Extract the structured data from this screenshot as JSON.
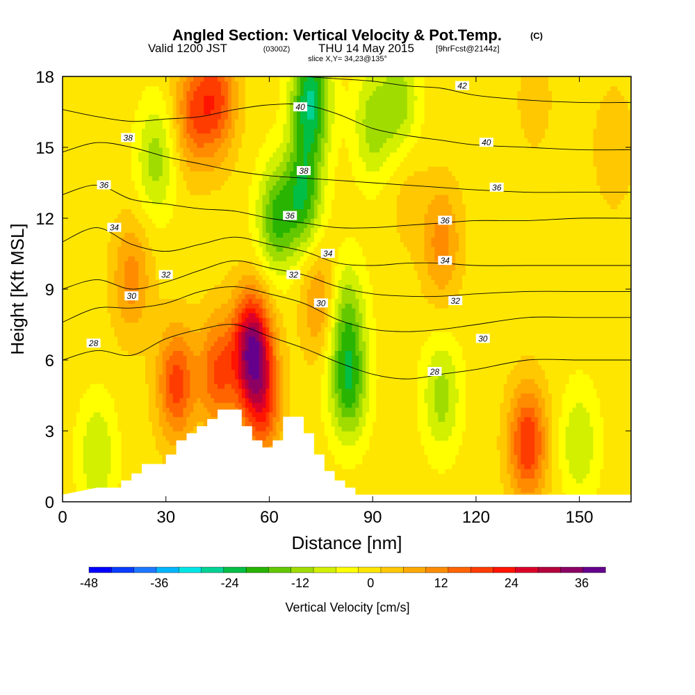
{
  "chart_data": {
    "type": "heatmap",
    "title": "Angled Section: Vertical Velocity & Pot.Temp.",
    "title_mark": "(C)",
    "subtitle_main": "Valid 1200 JST",
    "subtitle_utc": "(0300Z)",
    "subtitle_date": "THU 14 May 2015",
    "subtitle_fcst": "[9hrFcst@2144z]",
    "slice_info": "slice X,Y= 34,23@135°",
    "xlabel": "Distance [nm]",
    "ylabel": "Height [Kft MSL]",
    "xlim": [
      0,
      165
    ],
    "ylim": [
      0,
      18
    ],
    "x_ticks": [
      "0",
      "30",
      "60",
      "90",
      "120",
      "150"
    ],
    "x_tick_values": [
      0,
      30,
      60,
      90,
      120,
      150
    ],
    "y_ticks": [
      "0",
      "3",
      "6",
      "9",
      "12",
      "15",
      "18"
    ],
    "y_tick_values": [
      0,
      3,
      6,
      9,
      12,
      15,
      18
    ],
    "colorbar": {
      "label": "Vertical Velocity [cm/s]",
      "range": [
        -48,
        40
      ],
      "step": 4,
      "tick_labels": [
        "-48",
        "-36",
        "-24",
        "-12",
        "0",
        "12",
        "24",
        "36"
      ],
      "tick_values": [
        -48,
        -36,
        -24,
        -12,
        0,
        12,
        24,
        36
      ],
      "colors": [
        "#0000ff",
        "#0a3cff",
        "#1e78ff",
        "#00b4ff",
        "#00e6e6",
        "#00d296",
        "#00be46",
        "#28b400",
        "#64c800",
        "#a0dc00",
        "#d2f000",
        "#ffff00",
        "#ffe600",
        "#ffc800",
        "#ffaa00",
        "#ff8c00",
        "#ff6400",
        "#ff3c00",
        "#ff1400",
        "#dc0028",
        "#b4003c",
        "#8c0064",
        "#64008c"
      ]
    },
    "vertical_velocity_field": {
      "background": 2,
      "features": [
        {
          "x": 20,
          "y": 9.5,
          "value": 14
        },
        {
          "x": 33,
          "y": 5.0,
          "value": 22
        },
        {
          "x": 38,
          "y": 16.5,
          "value": 18
        },
        {
          "x": 45,
          "y": 5.5,
          "value": 20
        },
        {
          "x": 45,
          "y": 17.0,
          "value": 20
        },
        {
          "x": 55,
          "y": 6.5,
          "value": 38
        },
        {
          "x": 58,
          "y": 4.0,
          "value": 20
        },
        {
          "x": 62,
          "y": 12.0,
          "value": -16
        },
        {
          "x": 70,
          "y": 13.0,
          "value": -18
        },
        {
          "x": 72,
          "y": 17.0,
          "value": -24
        },
        {
          "x": 75,
          "y": 8.5,
          "value": 14
        },
        {
          "x": 83,
          "y": 5.0,
          "value": -18
        },
        {
          "x": 82,
          "y": 8.0,
          "value": -12
        },
        {
          "x": 27,
          "y": 14.5,
          "value": -10
        },
        {
          "x": 90,
          "y": 16.0,
          "value": -10
        },
        {
          "x": 98,
          "y": 17.0,
          "value": -10
        },
        {
          "x": 100,
          "y": 13.0,
          "value": 6
        },
        {
          "x": 110,
          "y": 11.0,
          "value": 14
        },
        {
          "x": 110,
          "y": 4.5,
          "value": -10
        },
        {
          "x": 135,
          "y": 2.5,
          "value": 24
        },
        {
          "x": 150,
          "y": 2.5,
          "value": -8
        },
        {
          "x": 10,
          "y": 2.0,
          "value": -8
        },
        {
          "x": 137,
          "y": 17.0,
          "value": 6
        },
        {
          "x": 160,
          "y": 15.0,
          "value": 8
        }
      ]
    },
    "theta_contours": [
      {
        "level": 28,
        "label": "28",
        "points": [
          [
            0,
            6.0
          ],
          [
            10,
            6.4
          ],
          [
            20,
            6.2
          ],
          [
            30,
            6.9
          ],
          [
            40,
            7.3
          ],
          [
            50,
            7.5
          ],
          [
            60,
            7.0
          ],
          [
            70,
            6.5
          ],
          [
            80,
            5.9
          ],
          [
            90,
            5.4
          ],
          [
            100,
            5.2
          ],
          [
            110,
            5.4
          ],
          [
            120,
            5.6
          ],
          [
            135,
            6.0
          ],
          [
            150,
            6.0
          ],
          [
            165,
            6.0
          ]
        ]
      },
      {
        "level": 30,
        "label": "30",
        "points": [
          [
            0,
            7.6
          ],
          [
            10,
            8.2
          ],
          [
            20,
            8.2
          ],
          [
            30,
            8.4
          ],
          [
            40,
            8.9
          ],
          [
            50,
            9.1
          ],
          [
            60,
            8.8
          ],
          [
            70,
            8.4
          ],
          [
            80,
            7.7
          ],
          [
            90,
            7.3
          ],
          [
            100,
            7.2
          ],
          [
            110,
            7.3
          ],
          [
            120,
            7.5
          ],
          [
            135,
            7.8
          ],
          [
            150,
            7.8
          ],
          [
            165,
            7.8
          ]
        ]
      },
      {
        "level": 32,
        "label": "32",
        "points": [
          [
            0,
            9.0
          ],
          [
            10,
            9.4
          ],
          [
            20,
            9.0
          ],
          [
            30,
            9.3
          ],
          [
            40,
            9.8
          ],
          [
            50,
            10.2
          ],
          [
            60,
            9.9
          ],
          [
            70,
            9.6
          ],
          [
            80,
            9.1
          ],
          [
            90,
            8.8
          ],
          [
            100,
            8.7
          ],
          [
            110,
            8.7
          ],
          [
            120,
            8.8
          ],
          [
            135,
            8.9
          ],
          [
            150,
            8.9
          ],
          [
            165,
            8.9
          ]
        ]
      },
      {
        "level": 34,
        "label": "34",
        "points": [
          [
            0,
            11.0
          ],
          [
            10,
            11.6
          ],
          [
            20,
            10.9
          ],
          [
            30,
            10.6
          ],
          [
            40,
            10.9
          ],
          [
            50,
            11.2
          ],
          [
            60,
            10.9
          ],
          [
            70,
            10.6
          ],
          [
            80,
            10.1
          ],
          [
            90,
            10.0
          ],
          [
            100,
            10.1
          ],
          [
            110,
            10.1
          ],
          [
            120,
            10.0
          ],
          [
            135,
            10.0
          ],
          [
            150,
            10.0
          ],
          [
            165,
            10.0
          ]
        ]
      },
      {
        "level": 36,
        "label": "36",
        "points": [
          [
            0,
            13.0
          ],
          [
            10,
            13.4
          ],
          [
            20,
            12.8
          ],
          [
            30,
            12.6
          ],
          [
            40,
            12.4
          ],
          [
            50,
            12.3
          ],
          [
            60,
            12.0
          ],
          [
            70,
            11.8
          ],
          [
            80,
            11.6
          ],
          [
            90,
            11.6
          ],
          [
            100,
            11.7
          ],
          [
            110,
            11.8
          ],
          [
            120,
            11.9
          ],
          [
            135,
            11.9
          ],
          [
            150,
            12.0
          ],
          [
            165,
            12.0
          ]
        ]
      },
      {
        "level": 38,
        "label": "38",
        "points": [
          [
            0,
            14.8
          ],
          [
            10,
            15.2
          ],
          [
            20,
            15.0
          ],
          [
            30,
            14.6
          ],
          [
            40,
            14.3
          ],
          [
            50,
            14.0
          ],
          [
            60,
            13.8
          ],
          [
            70,
            13.7
          ],
          [
            80,
            13.6
          ],
          [
            90,
            13.5
          ],
          [
            100,
            13.4
          ],
          [
            110,
            13.3
          ],
          [
            120,
            13.2
          ],
          [
            135,
            13.1
          ],
          [
            150,
            13.1
          ],
          [
            165,
            13.1
          ]
        ]
      },
      {
        "level": 40,
        "label": "40",
        "points": [
          [
            0,
            16.6
          ],
          [
            10,
            16.3
          ],
          [
            20,
            16.1
          ],
          [
            30,
            16.2
          ],
          [
            40,
            16.3
          ],
          [
            50,
            16.6
          ],
          [
            60,
            16.8
          ],
          [
            70,
            16.8
          ],
          [
            80,
            16.4
          ],
          [
            90,
            15.8
          ],
          [
            100,
            15.5
          ],
          [
            110,
            15.3
          ],
          [
            120,
            15.1
          ],
          [
            135,
            15.0
          ],
          [
            150,
            14.9
          ],
          [
            165,
            14.9
          ]
        ]
      },
      {
        "level": 42,
        "label": "42",
        "points": [
          [
            70,
            18.0
          ],
          [
            80,
            17.9
          ],
          [
            90,
            17.8
          ],
          [
            100,
            17.6
          ],
          [
            110,
            17.5
          ],
          [
            120,
            17.2
          ],
          [
            135,
            17.0
          ],
          [
            150,
            16.9
          ],
          [
            165,
            16.9
          ]
        ]
      }
    ],
    "contour_labels": [
      {
        "text": "42",
        "x": 116,
        "y": 17.6
      },
      {
        "text": "40",
        "x": 69,
        "y": 16.7
      },
      {
        "text": "40",
        "x": 123,
        "y": 15.2
      },
      {
        "text": "38",
        "x": 19,
        "y": 15.4
      },
      {
        "text": "38",
        "x": 70,
        "y": 14.0
      },
      {
        "text": "36",
        "x": 12,
        "y": 13.4
      },
      {
        "text": "36",
        "x": 66,
        "y": 12.1
      },
      {
        "text": "36",
        "x": 126,
        "y": 13.3
      },
      {
        "text": "36",
        "x": 111,
        "y": 11.9
      },
      {
        "text": "34",
        "x": 15,
        "y": 11.6
      },
      {
        "text": "34",
        "x": 77,
        "y": 10.5
      },
      {
        "text": "34",
        "x": 111,
        "y": 10.2
      },
      {
        "text": "32",
        "x": 30,
        "y": 9.6
      },
      {
        "text": "32",
        "x": 67,
        "y": 9.6
      },
      {
        "text": "32",
        "x": 114,
        "y": 8.5
      },
      {
        "text": "30",
        "x": 20,
        "y": 8.7
      },
      {
        "text": "30",
        "x": 75,
        "y": 8.4
      },
      {
        "text": "30",
        "x": 122,
        "y": 6.9
      },
      {
        "text": "28",
        "x": 9,
        "y": 6.7
      },
      {
        "text": "28",
        "x": 108,
        "y": 5.5
      }
    ],
    "terrain_profile": [
      [
        0,
        0.3
      ],
      [
        10,
        0.6
      ],
      [
        17,
        0.6
      ],
      [
        17,
        0.9
      ],
      [
        20,
        0.9
      ],
      [
        20,
        1.2
      ],
      [
        23,
        1.2
      ],
      [
        23,
        1.6
      ],
      [
        30,
        1.6
      ],
      [
        30,
        2.0
      ],
      [
        33,
        2.0
      ],
      [
        33,
        2.6
      ],
      [
        36,
        2.6
      ],
      [
        36,
        2.9
      ],
      [
        39,
        2.9
      ],
      [
        39,
        3.2
      ],
      [
        42,
        3.2
      ],
      [
        42,
        3.5
      ],
      [
        45,
        3.5
      ],
      [
        45,
        3.9
      ],
      [
        52,
        3.9
      ],
      [
        52,
        3.2
      ],
      [
        55,
        3.2
      ],
      [
        55,
        2.6
      ],
      [
        58,
        2.6
      ],
      [
        58,
        2.3
      ],
      [
        61,
        2.3
      ],
      [
        61,
        2.6
      ],
      [
        64,
        2.6
      ],
      [
        64,
        3.6
      ],
      [
        70,
        3.6
      ],
      [
        70,
        2.9
      ],
      [
        73,
        2.9
      ],
      [
        73,
        2.0
      ],
      [
        76,
        2.0
      ],
      [
        76,
        1.3
      ],
      [
        79,
        1.3
      ],
      [
        79,
        0.9
      ],
      [
        82,
        0.9
      ],
      [
        82,
        0.6
      ],
      [
        85,
        0.6
      ],
      [
        85,
        0.3
      ],
      [
        165,
        0.3
      ]
    ]
  }
}
